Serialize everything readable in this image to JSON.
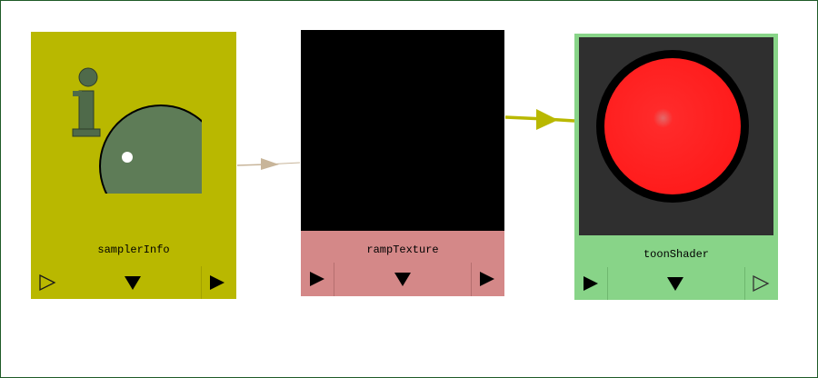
{
  "nodes": {
    "sampler_info": {
      "label": "samplerInfo",
      "color": "#b9b800",
      "icon": "sampler-info-icon"
    },
    "ramp_texture": {
      "label": "rampTexture",
      "color": "#d48888",
      "icon": "ramp-texture-swatch"
    },
    "toon_shader": {
      "label": "toonShader",
      "color": "#88d488",
      "icon": "toon-shader-sphere-swatch"
    }
  },
  "connections": [
    {
      "from": "samplerInfo",
      "to": "rampTexture",
      "color": "#c8b59a"
    },
    {
      "from": "rampTexture",
      "to": "toonShader",
      "color": "#b9b800"
    }
  ],
  "ports": {
    "input_glyph": "triangle-right",
    "output_glyph": "triangle-right",
    "expand_glyph": "triangle-down"
  }
}
